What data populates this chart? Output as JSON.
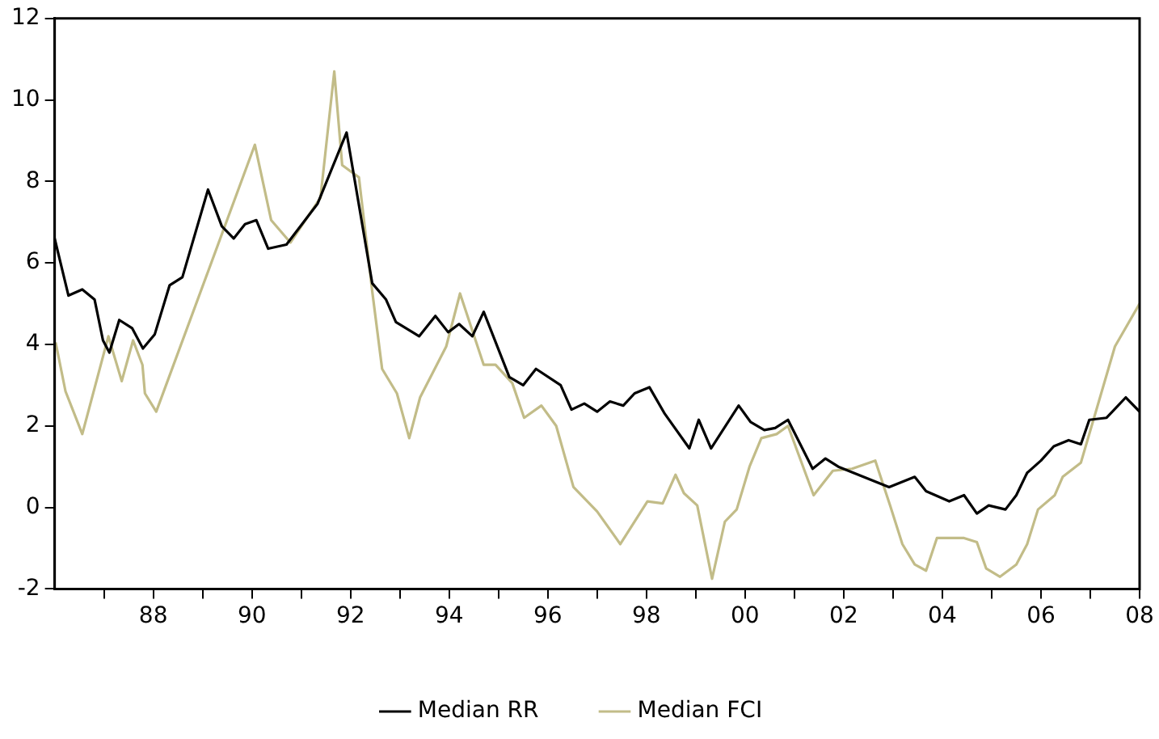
{
  "chart_data": {
    "type": "line",
    "xlim": [
      1986,
      2008
    ],
    "ylim": [
      -2,
      12
    ],
    "yticks": [
      -2,
      0,
      2,
      4,
      6,
      8,
      10,
      12
    ],
    "xticks": [
      {
        "value": 1987,
        "label": null
      },
      {
        "value": 1988,
        "label": "88"
      },
      {
        "value": 1989,
        "label": null
      },
      {
        "value": 1990,
        "label": "90"
      },
      {
        "value": 1991,
        "label": null
      },
      {
        "value": 1992,
        "label": "92"
      },
      {
        "value": 1993,
        "label": null
      },
      {
        "value": 1994,
        "label": "94"
      },
      {
        "value": 1995,
        "label": null
      },
      {
        "value": 1996,
        "label": "96"
      },
      {
        "value": 1997,
        "label": null
      },
      {
        "value": 1998,
        "label": "98"
      },
      {
        "value": 1999,
        "label": null
      },
      {
        "value": 2000,
        "label": "00"
      },
      {
        "value": 2001,
        "label": null
      },
      {
        "value": 2002,
        "label": "02"
      },
      {
        "value": 2003,
        "label": null
      },
      {
        "value": 2004,
        "label": "04"
      },
      {
        "value": 2005,
        "label": null
      },
      {
        "value": 2006,
        "label": "06"
      },
      {
        "value": 2007,
        "label": null
      },
      {
        "value": 2008,
        "label": "08"
      }
    ],
    "grid": false,
    "legend": "bottom",
    "marker": "none",
    "line_style": "solid",
    "series": [
      {
        "name": "Median RR",
        "color": "#000000",
        "x": [
          1986.0,
          1986.28,
          1986.56,
          1986.81,
          1986.98,
          1987.11,
          1987.31,
          1987.57,
          1987.79,
          1988.03,
          1988.33,
          1988.59,
          1989.11,
          1989.39,
          1989.63,
          1989.86,
          1990.09,
          1990.33,
          1990.7,
          1991.33,
          1991.92,
          1992.44,
          1992.72,
          1992.92,
          1993.39,
          1993.72,
          1993.98,
          1994.2,
          1994.47,
          1994.7,
          1995.22,
          1995.5,
          1995.76,
          1996.26,
          1996.48,
          1996.74,
          1997.0,
          1997.26,
          1997.53,
          1997.76,
          1998.06,
          1998.37,
          1998.87,
          1999.06,
          1999.31,
          1999.87,
          2000.11,
          2000.39,
          2000.61,
          2000.87,
          2001.37,
          2001.63,
          2001.89,
          2002.92,
          2003.44,
          2003.67,
          2004.14,
          2004.44,
          2004.7,
          2004.94,
          2005.28,
          2005.5,
          2005.72,
          2006.0,
          2006.26,
          2006.56,
          2006.81,
          2006.98,
          2007.33,
          2007.72,
          2008.0
        ],
        "values": [
          6.6,
          5.2,
          5.35,
          5.1,
          4.1,
          3.8,
          4.6,
          4.4,
          3.9,
          4.25,
          5.45,
          5.65,
          7.8,
          6.9,
          6.6,
          6.95,
          7.05,
          6.35,
          6.45,
          7.45,
          9.2,
          5.5,
          5.1,
          4.55,
          4.2,
          4.7,
          4.3,
          4.5,
          4.2,
          4.8,
          3.2,
          3.0,
          3.4,
          3.0,
          2.4,
          2.55,
          2.35,
          2.6,
          2.5,
          2.8,
          2.95,
          2.3,
          1.45,
          2.15,
          1.45,
          2.5,
          2.1,
          1.9,
          1.95,
          2.15,
          0.95,
          1.2,
          1.0,
          0.5,
          0.75,
          0.4,
          0.15,
          0.3,
          -0.15,
          0.05,
          -0.05,
          0.3,
          0.85,
          1.15,
          1.5,
          1.65,
          1.55,
          2.15,
          2.2,
          2.7,
          2.35
        ]
      },
      {
        "name": "Median FCI",
        "color": "#c2bc88",
        "x": [
          1986.02,
          1986.22,
          1986.56,
          1987.09,
          1987.36,
          1987.59,
          1987.78,
          1987.83,
          1988.06,
          1990.06,
          1990.39,
          1990.78,
          1991.39,
          1991.67,
          1991.83,
          1992.17,
          1992.44,
          1992.64,
          1992.94,
          1993.19,
          1993.41,
          1993.94,
          1994.22,
          1994.7,
          1994.94,
          1995.28,
          1995.52,
          1995.87,
          1996.17,
          1996.52,
          1997.0,
          1997.47,
          1998.02,
          1998.33,
          1998.59,
          1998.76,
          1999.03,
          1999.33,
          1999.59,
          1999.83,
          2000.09,
          2000.33,
          2000.64,
          2000.87,
          2001.39,
          2001.78,
          2002.17,
          2002.64,
          2002.94,
          2003.19,
          2003.44,
          2003.67,
          2003.89,
          2004.44,
          2004.7,
          2004.89,
          2005.17,
          2005.5,
          2005.72,
          2005.94,
          2006.28,
          2006.44,
          2006.81,
          2007.5,
          2008.0
        ],
        "values": [
          4.05,
          2.85,
          1.8,
          4.2,
          3.1,
          4.1,
          3.5,
          2.8,
          2.35,
          8.9,
          7.05,
          6.5,
          7.6,
          10.7,
          8.4,
          8.1,
          5.3,
          3.4,
          2.8,
          1.7,
          2.7,
          3.95,
          5.25,
          3.5,
          3.5,
          3.05,
          2.2,
          2.5,
          2.0,
          0.5,
          -0.1,
          -0.9,
          0.15,
          0.1,
          0.8,
          0.35,
          0.05,
          -1.75,
          -0.35,
          -0.05,
          1.0,
          1.7,
          1.8,
          2.0,
          0.3,
          0.9,
          0.95,
          1.15,
          0.05,
          -0.9,
          -1.4,
          -1.55,
          -0.75,
          -0.75,
          -0.85,
          -1.5,
          -1.7,
          -1.4,
          -0.9,
          -0.05,
          0.3,
          0.75,
          1.1,
          3.95,
          5.0
        ]
      }
    ]
  }
}
